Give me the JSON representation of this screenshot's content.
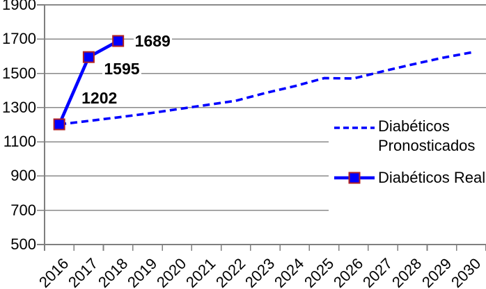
{
  "chart_data": {
    "type": "line",
    "title": "",
    "categories": [
      "2016",
      "2017",
      "2018",
      "2019",
      "2020",
      "2021",
      "2022",
      "2023",
      "2024",
      "2025",
      "2026",
      "2027",
      "2028",
      "2029",
      "2030"
    ],
    "y_ticks": [
      500,
      700,
      900,
      1100,
      1300,
      1500,
      1700,
      1900
    ],
    "ylim": [
      500,
      1900
    ],
    "xlabel": "",
    "ylabel": "",
    "grid": "horizontal",
    "legend_position": "right-inside-overlay",
    "series": [
      {
        "name": "Diabéticos Pronosticados",
        "line_style": "dashed",
        "marker": "none",
        "color": "#0000FF",
        "values": [
          1202,
          1222,
          1243,
          1265,
          1290,
          1315,
          1340,
          1385,
          1425,
          1472,
          1470,
          1512,
          1552,
          1590,
          1622
        ]
      },
      {
        "name": "Diabéticos Real",
        "line_style": "solid",
        "marker": "square",
        "color": "#0000FF",
        "marker_border_color": "#B22222",
        "values": [
          1202,
          1595,
          1689
        ],
        "data_labels": [
          {
            "text": "1202",
            "dx": 30,
            "dy": -49
          },
          {
            "text": "1595",
            "dx": 20,
            "dy": 6
          },
          {
            "text": "1689",
            "dx": 22,
            "dy": -11
          }
        ]
      }
    ],
    "colors": {
      "gridline": "#8A8A8A",
      "axis": "#7F7F7F",
      "text": "#000000",
      "background": "#FFFFFF"
    }
  }
}
